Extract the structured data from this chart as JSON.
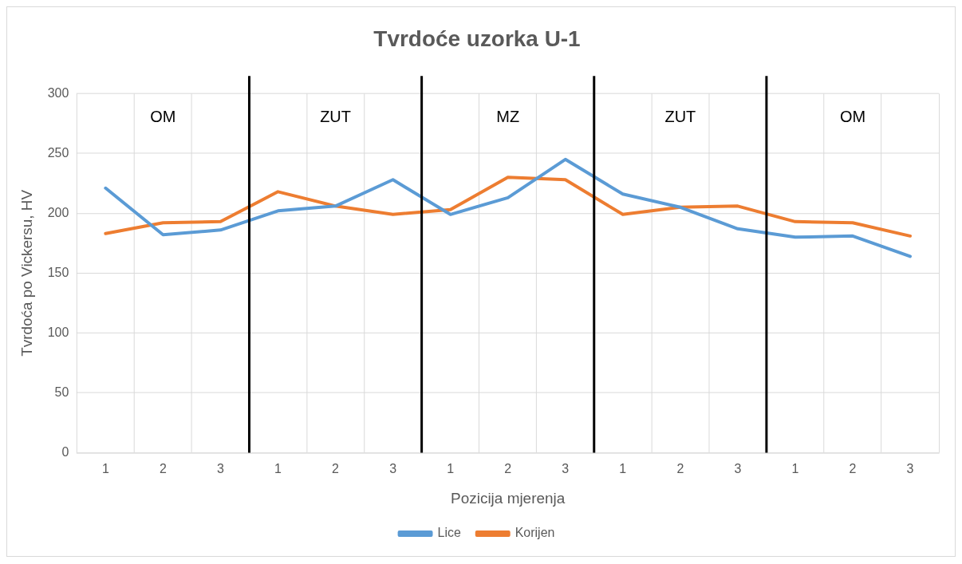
{
  "chart_data": {
    "type": "line",
    "title": "Tvrdoće uzorka U-1",
    "xlabel": "Pozicija mjerenja",
    "ylabel": "Tvrdoća po Vickersu, HV",
    "categories": [
      "1",
      "2",
      "3",
      "1",
      "2",
      "3",
      "1",
      "2",
      "3",
      "1",
      "2",
      "3",
      "1",
      "2",
      "3"
    ],
    "series": [
      {
        "name": "Lice",
        "color": "#5b9bd5",
        "values": [
          221,
          182,
          186,
          202,
          206,
          228,
          199,
          213,
          245,
          216,
          205,
          187,
          180,
          181,
          164
        ]
      },
      {
        "name": "Korijen",
        "color": "#ed7d31",
        "values": [
          183,
          192,
          193,
          218,
          206,
          199,
          203,
          230,
          228,
          199,
          205,
          206,
          193,
          192,
          181
        ]
      }
    ],
    "ylim": [
      0,
      300
    ],
    "yticks": [
      0,
      50,
      100,
      150,
      200,
      250,
      300
    ],
    "grid": true,
    "legend": "bottom",
    "marker": "none",
    "line_style": "solid",
    "annotations": [
      "OM",
      "ZUT",
      "MZ",
      "ZUT",
      "OM"
    ]
  }
}
